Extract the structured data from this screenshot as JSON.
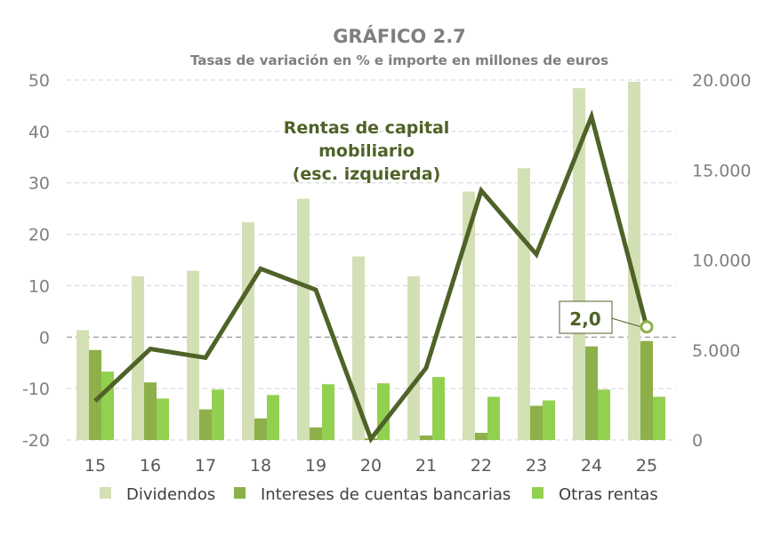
{
  "chart_data": {
    "type": "bar+line",
    "title": "GRÁFICO 2.7",
    "subtitle": "Tasas de variación en % e importe en millones de euros",
    "categories": [
      "15",
      "16",
      "17",
      "18",
      "19",
      "20",
      "21",
      "22",
      "23",
      "24",
      "25"
    ],
    "left_axis": {
      "ylim": [
        -20,
        50
      ],
      "ticks": [
        "50",
        "40",
        "30",
        "20",
        "10",
        "0",
        "-10",
        "-20"
      ]
    },
    "right_axis": {
      "ylim": [
        0,
        20000
      ],
      "ticks": [
        "20.000",
        "15.000",
        "10.000",
        "5.000",
        "0"
      ]
    },
    "grid": true,
    "legend_position": "bottom",
    "series": [
      {
        "name": "Dividendos",
        "axis": "right",
        "kind": "bar",
        "color": "#d3e0b5",
        "values": [
          6100,
          9100,
          9400,
          12100,
          13400,
          10200,
          9100,
          13800,
          15100,
          19550,
          19900
        ]
      },
      {
        "name": "Intereses de cuentas bancarias",
        "axis": "right",
        "kind": "bar",
        "color": "#8db04a",
        "values": [
          5000,
          3200,
          1700,
          1200,
          700,
          100,
          250,
          400,
          1900,
          5200,
          5500
        ]
      },
      {
        "name": "Otras rentas",
        "axis": "right",
        "kind": "bar",
        "color": "#92d050",
        "values": [
          3800,
          2300,
          2800,
          2500,
          3100,
          3150,
          3500,
          2400,
          2200,
          2800,
          2400
        ]
      },
      {
        "axis": "left",
        "kind": "line",
        "color": "#4f6228",
        "values": [
          -12.4,
          -2.3,
          -4.0,
          13.3,
          9.2,
          -19.8,
          -6.0,
          28.5,
          16.1,
          42.9,
          2.0
        ]
      }
    ],
    "line_annotation": [
      "Rentas  de capital",
      "mobiliario",
      "(esc. izquierda)"
    ],
    "data_label": "2,0"
  }
}
